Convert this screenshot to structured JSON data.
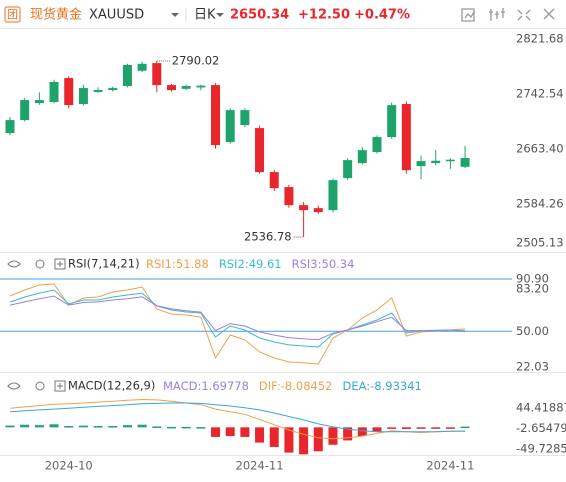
{
  "header": {
    "icon": "团",
    "symbol_cn": "现货黄金",
    "symbol": "XAUUSD",
    "period": "日K",
    "price": "2650.34",
    "change": "+12.50",
    "change_pct": "+0.47%"
  },
  "chart_data": [
    {
      "type": "candlestick",
      "up_color": "#1ea46a",
      "down_color": "#e8262c",
      "ylim": [
        2505.13,
        2821.68
      ],
      "yticks": [
        2821.68,
        2742.54,
        {
          "value": 2663.4,
          "label": "2663.40"
        },
        2584.26,
        2505.13
      ],
      "x_labels": [
        {
          "index": 4,
          "label": "2024-10"
        },
        {
          "index": 17,
          "label": "2024-11"
        },
        {
          "index": 30,
          "label": "2024-11"
        }
      ],
      "open": [
        2686.3,
        2705.0,
        2729.5,
        2731.0,
        2765.5,
        2728.1,
        2745.4,
        2748.2,
        2754.0,
        2776.0,
        2787.0,
        2755.4,
        2750.0,
        2752.0,
        2755.4,
        2673.4,
        2697.8,
        2693.5,
        2630.2,
        2608.6,
        2582.6,
        2578.3,
        2575.4,
        2621.5,
        2643.1,
        2659.0,
        2680.6,
        2728.1,
        2638.8,
        2643.1,
        2646.0,
        2637.8
      ],
      "close": [
        2705.0,
        2733.8,
        2733.8,
        2759.8,
        2726.6,
        2751.1,
        2748.2,
        2751.1,
        2784.3,
        2786.0,
        2755.4,
        2748.2,
        2754.0,
        2754.5,
        2669.0,
        2719.4,
        2719.4,
        2630.2,
        2607.1,
        2582.6,
        2575.4,
        2572.6,
        2618.6,
        2647.4,
        2661.8,
        2680.6,
        2726.6,
        2633.0,
        2646.0,
        2646.5,
        2648.0,
        2650.34
      ],
      "high": [
        2709.4,
        2737.0,
        2745.0,
        2763.0,
        2768.0,
        2756.0,
        2752.0,
        2753.0,
        2786.0,
        2789.0,
        2790.02,
        2757.0,
        2756.0,
        2756.0,
        2758.0,
        2722.0,
        2722.0,
        2697.0,
        2633.0,
        2612.0,
        2587.0,
        2582.0,
        2621.0,
        2650.0,
        2666.0,
        2683.0,
        2730.0,
        2732.0,
        2654.0,
        2662.0,
        2650.0,
        2668.0
      ],
      "low": [
        2683.4,
        2703.0,
        2727.0,
        2729.0,
        2722.0,
        2726.0,
        2744.0,
        2746.0,
        2752.0,
        2774.0,
        2745.0,
        2746.0,
        2748.0,
        2748.0,
        2664.0,
        2671.0,
        2695.0,
        2628.0,
        2603.0,
        2579.0,
        2536.78,
        2570.0,
        2572.0,
        2619.0,
        2641.0,
        2657.0,
        2678.0,
        2628.0,
        2620.0,
        2640.0,
        2635.0,
        2636.0
      ]
    },
    {
      "type": "line",
      "title": "RSI(7,14,21)",
      "ylim": [
        22.03,
        90.9
      ],
      "yticks": [
        {
          "value": 90.9,
          "label": "90.90"
        },
        {
          "value": 83.2,
          "label": "83.20"
        },
        {
          "value": 50,
          "label": "50.00"
        },
        22.03
      ],
      "hlines": [
        90.9,
        50
      ],
      "hline_color": "#4a9fe0",
      "series": [
        {
          "name": "RSI1",
          "color": "#f4a04a",
          "values": [
            77.6,
            82.3,
            86.2,
            87.0,
            70.6,
            76.0,
            76.8,
            80.7,
            82.3,
            84.6,
            67.4,
            63.5,
            62.7,
            61.1,
            29.1,
            47.1,
            43.2,
            33.8,
            29.1,
            26.0,
            25.2,
            24.4,
            44.7,
            51.0,
            60.4,
            66.6,
            76.0,
            46.3,
            49.4,
            50.2,
            51.0,
            51.88
          ]
        },
        {
          "name": "RSI2",
          "color": "#38bccc",
          "values": [
            72.9,
            76.8,
            79.9,
            82.3,
            71.3,
            74.5,
            74.5,
            76.8,
            78.4,
            79.9,
            69.8,
            66.6,
            65.1,
            64.3,
            45.5,
            54.1,
            51.0,
            44.7,
            41.6,
            39.3,
            38.5,
            37.7,
            47.9,
            51.0,
            54.9,
            58.8,
            64.3,
            48.6,
            50.2,
            50.2,
            51.0,
            49.61
          ]
        },
        {
          "name": "RSI3",
          "color": "#9b80e0",
          "values": [
            70.5,
            73,
            75.5,
            77.5,
            70.5,
            72.5,
            73,
            74.5,
            75.5,
            77,
            70,
            67.5,
            66,
            65,
            50.5,
            56,
            54,
            49.5,
            47,
            45,
            44,
            43.5,
            48.5,
            51,
            54,
            57.5,
            61,
            50.5,
            50.5,
            50.8,
            51,
            50.34
          ]
        }
      ]
    },
    {
      "type": "macd",
      "title": "MACD(12,26,9)",
      "up_color": "#1ea46a",
      "down_color": "#e8262c",
      "ylim": [
        -49.72855,
        44.41887
      ],
      "yticks": [
        44.41887,
        -2.65479,
        -49.72855
      ],
      "series": [
        {
          "name": "MACD",
          "color": "#9b80e0",
          "values": [
            4,
            6,
            5,
            7,
            3,
            4,
            3,
            3,
            5,
            6,
            2,
            1,
            1,
            0.5,
            -22,
            -20,
            -22,
            -35,
            -45,
            -58,
            -62,
            -55,
            -40,
            -30,
            -20,
            -10,
            -2,
            -4,
            -3,
            -2,
            -1,
            1.69778
          ]
        },
        {
          "name": "DIF",
          "color": "#f4a04a",
          "values": [
            44,
            47,
            50,
            53,
            54,
            56,
            58,
            60,
            62,
            64,
            63,
            60,
            56,
            52,
            42,
            36,
            30,
            18,
            6,
            -6,
            -16,
            -24,
            -26,
            -24,
            -20,
            -14,
            -8,
            -10,
            -12,
            -10,
            -9,
            -8.08452
          ]
        },
        {
          "name": "DEA",
          "color": "#3aa6d8",
          "values": [
            36,
            38,
            40,
            42,
            44,
            46,
            48,
            50,
            52,
            54,
            55,
            56,
            56,
            55,
            52,
            49,
            45,
            40,
            33,
            25,
            17,
            8,
            1,
            -4,
            -8,
            -10,
            -10,
            -10,
            -10,
            -10,
            -9,
            -8.93341
          ]
        }
      ]
    }
  ]
}
